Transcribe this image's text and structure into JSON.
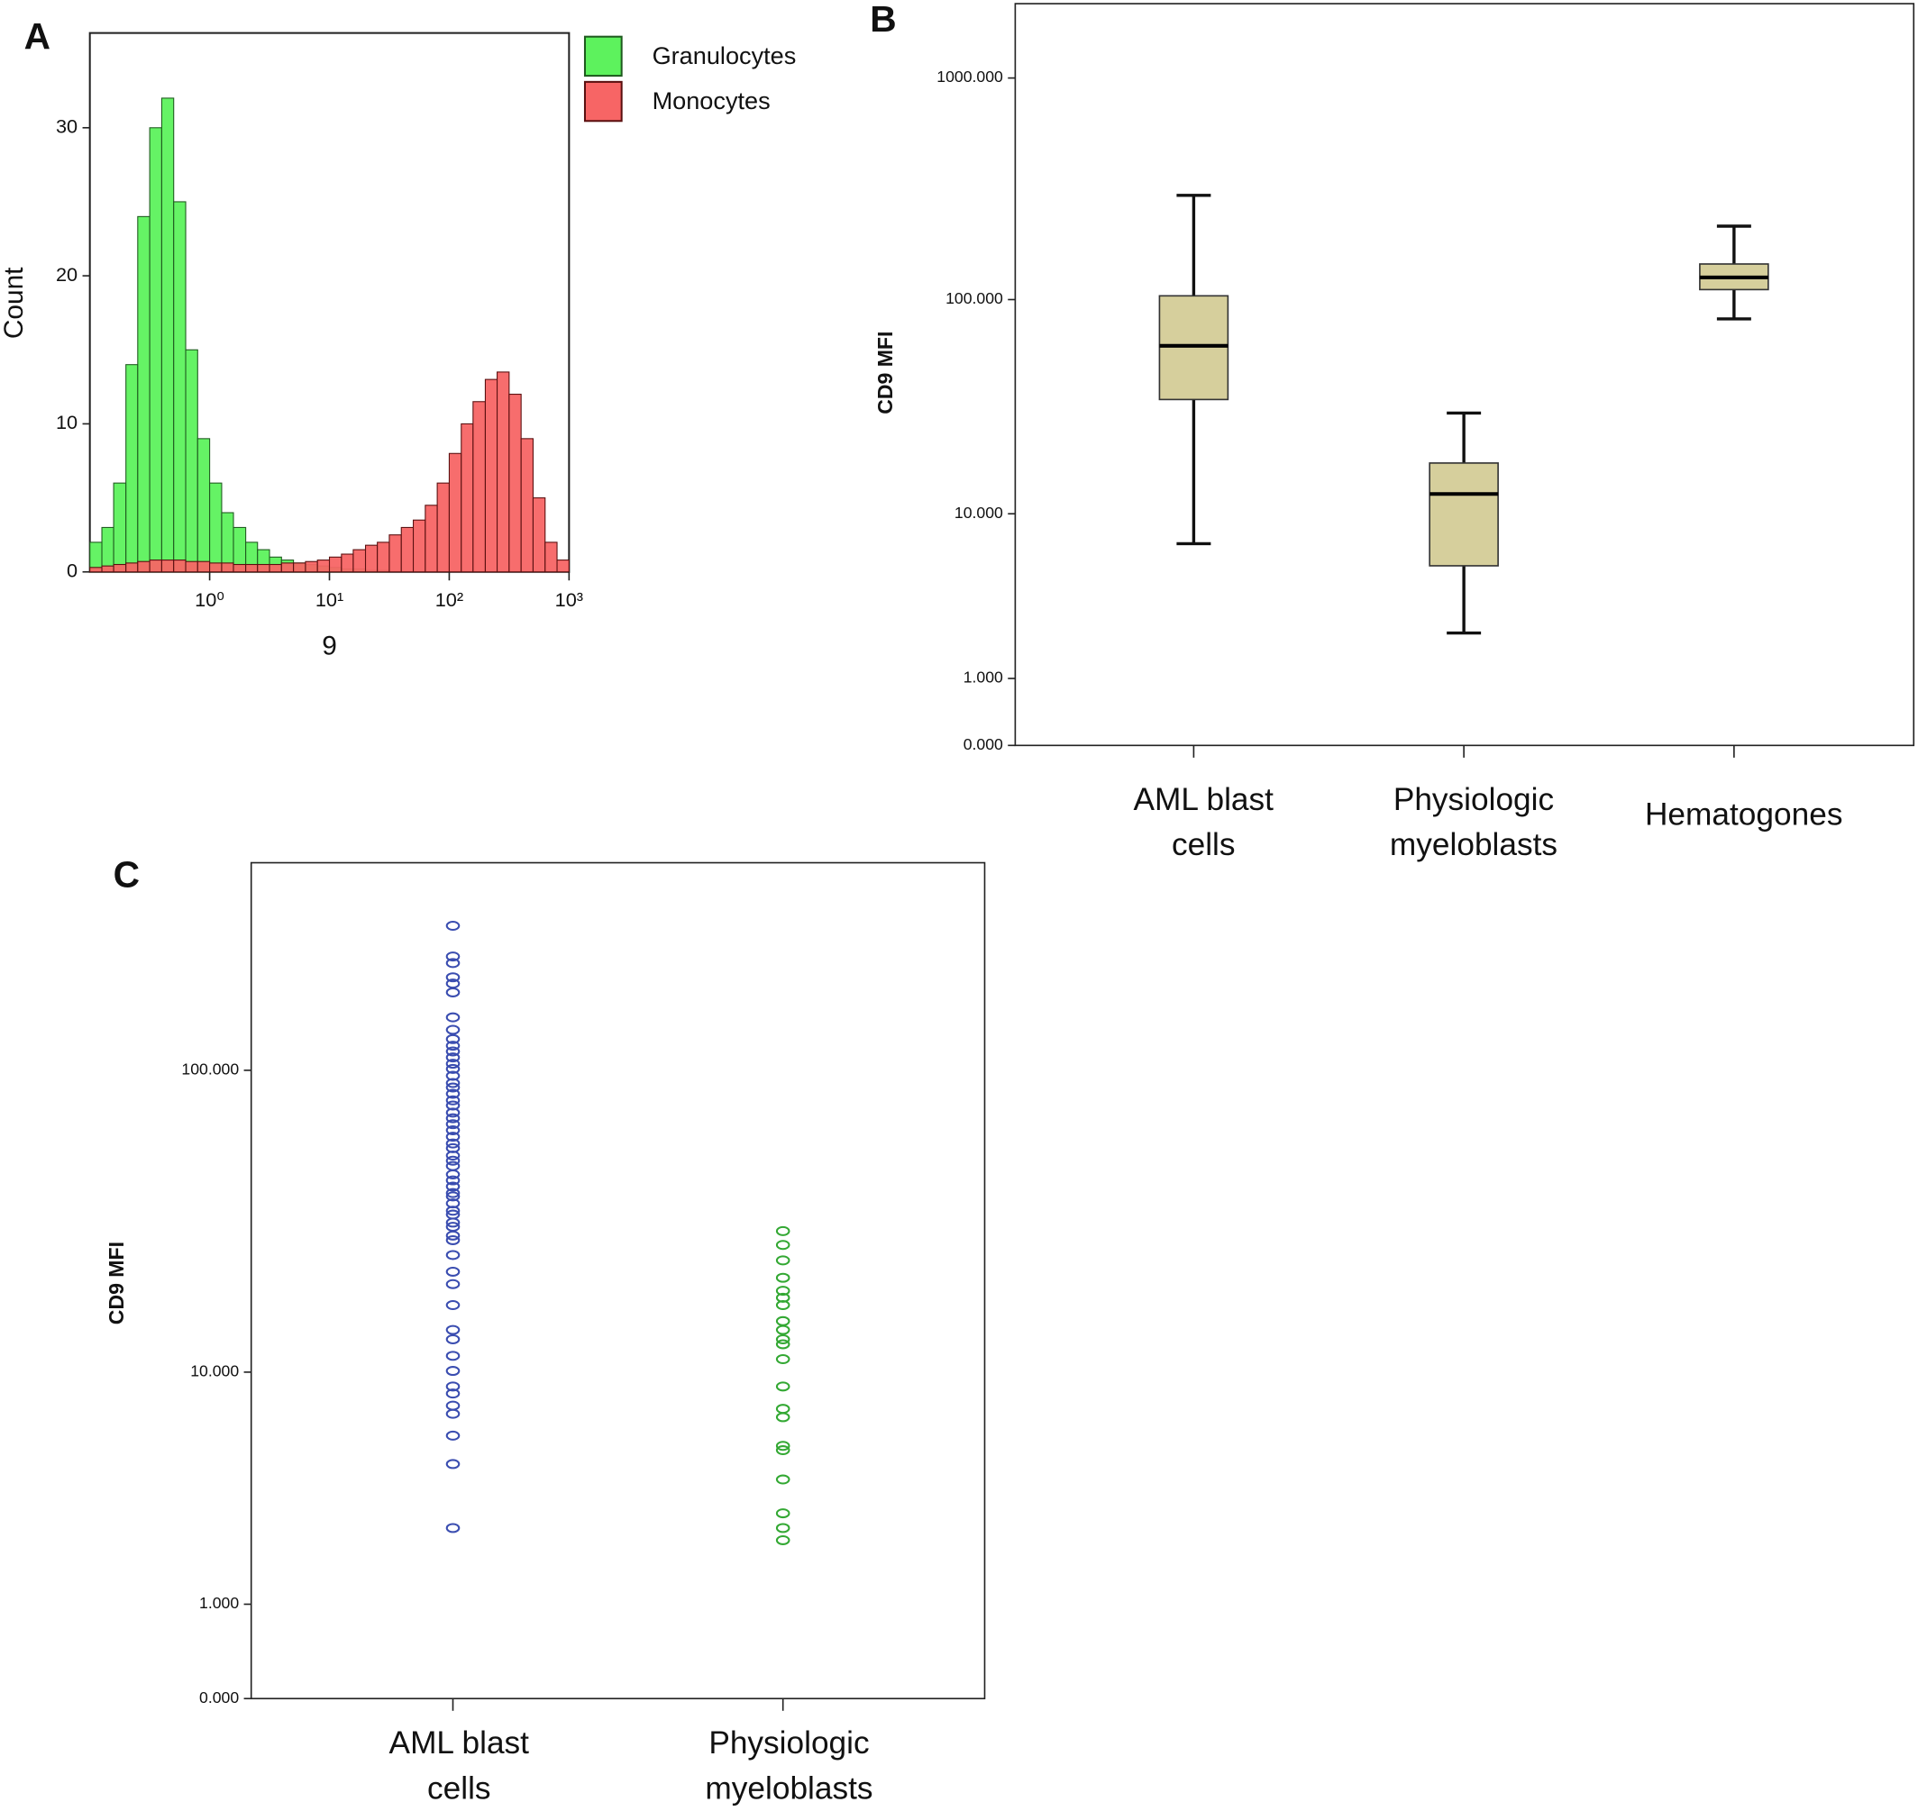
{
  "chart_data": [
    {
      "type": "histogram",
      "panel": "A",
      "xlabel": "9",
      "ylabel": "Count",
      "xscale": "log",
      "xlim": [
        0.1,
        1000
      ],
      "ylim": [
        0,
        36.4
      ],
      "xticks": [
        {
          "value": 1,
          "label": "10⁰"
        },
        {
          "value": 10,
          "label": "10¹"
        },
        {
          "value": 100,
          "label": "10²"
        },
        {
          "value": 1000,
          "label": "10³"
        }
      ],
      "yticks": [
        0,
        10,
        20,
        30
      ],
      "bins": [
        0.1,
        0.126,
        0.158,
        0.2,
        0.251,
        0.316,
        0.398,
        0.501,
        0.631,
        0.794,
        1,
        1.26,
        1.58,
        2,
        2.51,
        3.16,
        3.98,
        5.01,
        6.31,
        7.94,
        10,
        12.6,
        15.8,
        20,
        25.1,
        31.6,
        39.8,
        50.1,
        63.1,
        79.4,
        100,
        126,
        158,
        200,
        251,
        316,
        398,
        501,
        631,
        794,
        1000
      ],
      "legend": "top-right-outside",
      "series": [
        {
          "name": "Granulocytes",
          "color": "#5df25d",
          "edge": "#1f5a1f",
          "values": [
            2,
            3,
            6,
            14,
            24,
            30,
            32,
            25,
            15,
            9,
            6,
            4,
            3,
            2,
            1.5,
            1,
            0.8,
            0.6,
            0.5,
            0.4,
            0.3,
            0.2,
            0.2,
            0.1,
            0.1,
            0,
            0,
            0,
            0,
            0,
            0,
            0,
            0,
            0,
            0,
            0,
            0,
            0,
            0,
            0
          ]
        },
        {
          "name": "Monocytes",
          "color": "#f76565",
          "edge": "#5a1010",
          "values": [
            0.3,
            0.4,
            0.5,
            0.6,
            0.7,
            0.8,
            0.8,
            0.8,
            0.7,
            0.7,
            0.6,
            0.6,
            0.5,
            0.5,
            0.5,
            0.5,
            0.6,
            0.6,
            0.7,
            0.8,
            1,
            1.2,
            1.5,
            1.8,
            2,
            2.5,
            3,
            3.5,
            4.5,
            6,
            8,
            10,
            11.5,
            13,
            13.5,
            12,
            9,
            5,
            2,
            0.8
          ]
        }
      ]
    },
    {
      "type": "box",
      "panel": "B",
      "ylabel": "CD9 MFI",
      "yscale": "log1p",
      "ylim": [
        0,
        2160
      ],
      "yticks": [
        {
          "value": 1000,
          "label": "1000.000"
        },
        {
          "value": 100,
          "label": "100.000"
        },
        {
          "value": 10,
          "label": "10.000"
        },
        {
          "value": 1,
          "label": "1.000"
        },
        {
          "value": 0,
          "label": "0.000"
        }
      ],
      "categories": [
        [
          "AML blast",
          "cells"
        ],
        [
          "Physiologic",
          "myeloblasts"
        ],
        [
          "Hematogones"
        ]
      ],
      "color": "#d6cf9c",
      "whisker_low": [
        7.07,
        2.2,
        81.7
      ],
      "q1": [
        34.9,
        5.42,
        111
      ],
      "median": [
        61.6,
        12.5,
        126
      ],
      "q3": [
        104,
        17.6,
        145
      ],
      "whisker_high": [
        296,
        30.2,
        215
      ]
    },
    {
      "type": "strip",
      "panel": "C",
      "ylabel": "CD9 MFI",
      "yscale": "log1p",
      "ylim": [
        0,
        463
      ],
      "yticks": [
        {
          "value": 100,
          "label": "100.000"
        },
        {
          "value": 10,
          "label": "10.000"
        },
        {
          "value": 1,
          "label": "1.000"
        },
        {
          "value": 0,
          "label": "0.000"
        }
      ],
      "categories": [
        [
          "AML blast",
          "cells"
        ],
        [
          "Physiologic",
          "myeloblasts"
        ]
      ],
      "series": [
        {
          "color": "#3a4db0",
          "values": [
            291,
            232,
            221,
            199,
            190,
            178,
            148,
            135,
            126,
            120,
            115,
            110,
            105,
            101,
            96,
            91,
            88,
            84,
            80,
            77,
            73,
            70,
            67,
            64,
            61,
            58,
            56,
            53,
            51,
            49,
            46,
            44,
            42,
            40,
            39,
            37,
            35,
            34,
            32,
            31,
            29,
            28,
            25,
            22,
            20,
            17,
            14,
            13,
            11.4,
            10.1,
            8.9,
            8.4,
            7.6,
            7.1,
            5.9,
            4.6,
            2.5
          ]
        },
        {
          "color": "#33a833",
          "values": [
            30,
            27,
            24,
            21,
            19,
            18,
            17,
            15,
            14,
            13,
            12.5,
            11.1,
            8.9,
            7.4,
            6.9,
            5.4,
            5.2,
            4.0,
            2.9,
            2.5,
            2.2
          ]
        }
      ]
    }
  ]
}
